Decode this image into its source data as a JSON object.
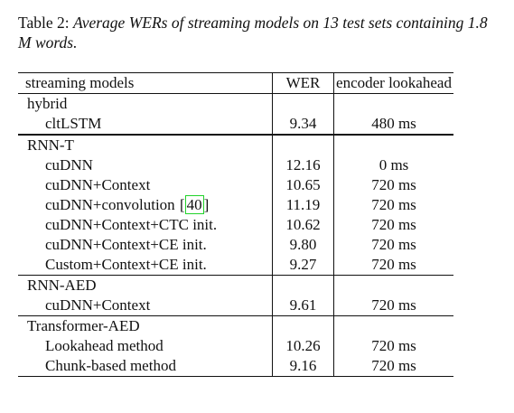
{
  "caption": {
    "label": "Table 2:",
    "text": "Average WERs of streaming models on 13 test sets containing 1.8 M words."
  },
  "table": {
    "headers": [
      "streaming models",
      "WER",
      "encoder lookahead"
    ],
    "groups": [
      {
        "name": "hybrid",
        "rows": [
          {
            "model": "cltLSTM",
            "wer": "9.34",
            "lookahead": "480 ms"
          }
        ]
      },
      {
        "name": "RNN-T",
        "rows": [
          {
            "model": "cuDNN",
            "wer": "12.16",
            "lookahead": "0 ms"
          },
          {
            "model": "cuDNN+Context",
            "wer": "10.65",
            "lookahead": "720 ms"
          },
          {
            "model": "cuDNN+convolution",
            "cite": "40",
            "wer": "11.19",
            "lookahead": "720 ms"
          },
          {
            "model": "cuDNN+Context+CTC init.",
            "wer": "10.62",
            "lookahead": "720 ms"
          },
          {
            "model": "cuDNN+Context+CE init.",
            "wer": "9.80",
            "lookahead": "720 ms"
          },
          {
            "model": "Custom+Context+CE init.",
            "wer": "9.27",
            "lookahead": "720 ms"
          }
        ]
      },
      {
        "name": "RNN-AED",
        "rows": [
          {
            "model": "cuDNN+Context",
            "wer": "9.61",
            "lookahead": "720 ms"
          }
        ]
      },
      {
        "name": "Transformer-AED",
        "rows": [
          {
            "model": "Lookahead method",
            "wer": "10.26",
            "lookahead": "720 ms"
          },
          {
            "model": "Chunk-based method",
            "wer": "9.16",
            "lookahead": "720 ms"
          }
        ]
      }
    ]
  }
}
